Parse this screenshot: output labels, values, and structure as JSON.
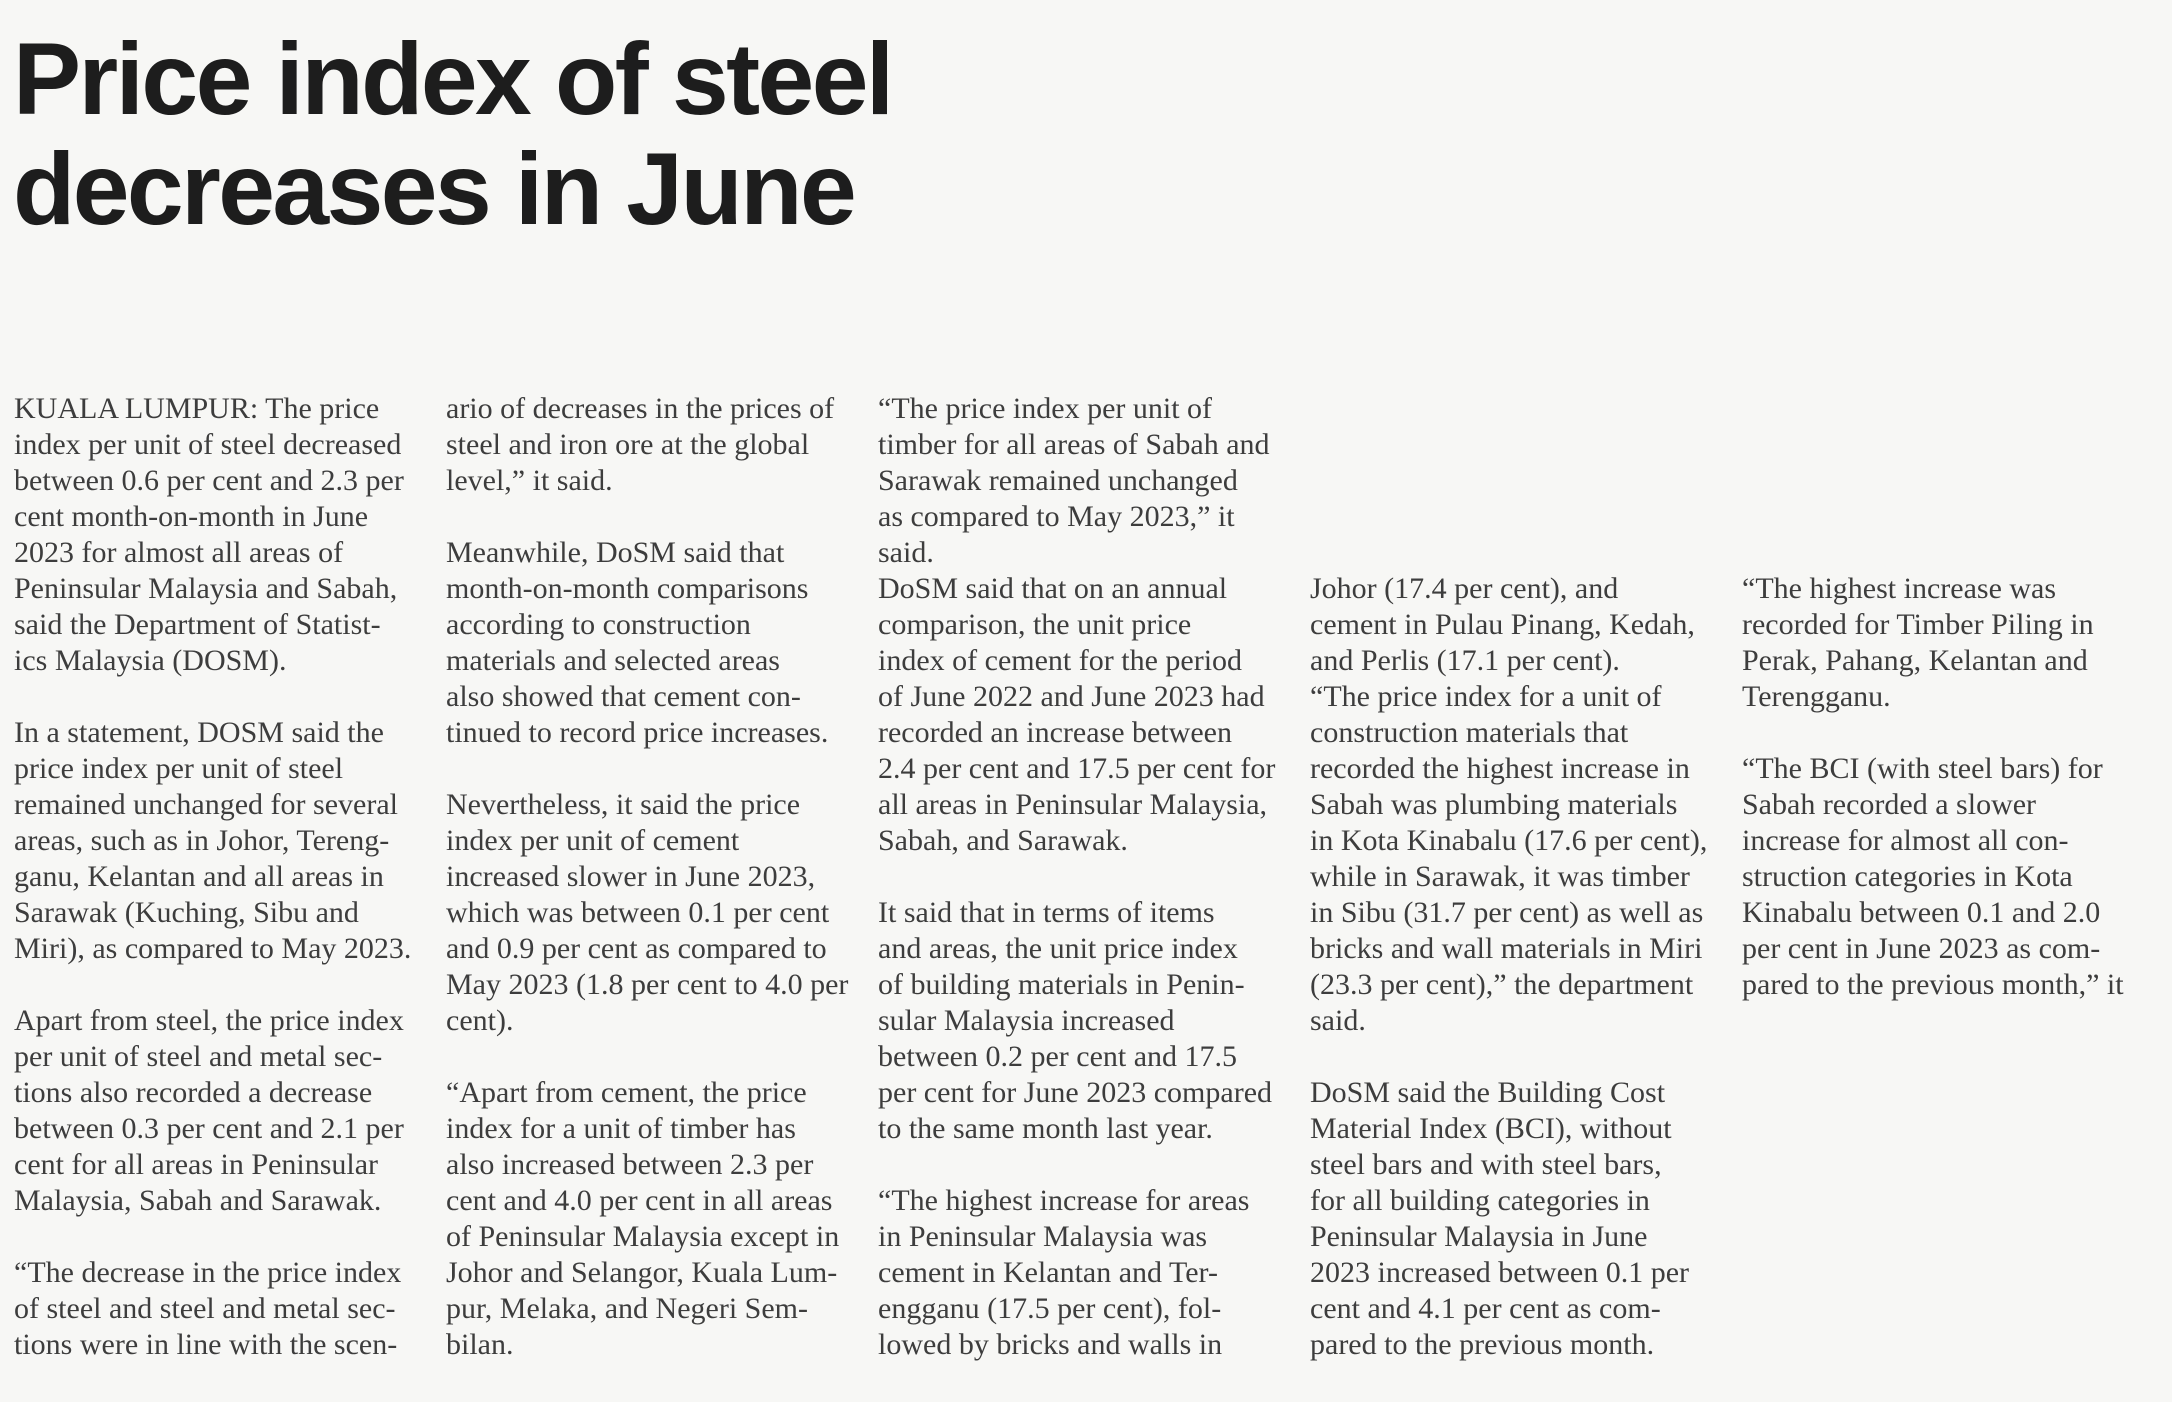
{
  "page": {
    "background_color": "#f7f7f5",
    "headline_color": "#1d1d1d",
    "body_text_color": "#3d3d3d"
  },
  "article": {
    "headline": "Price index of steel\ndecreases in June",
    "columns": [
      {
        "text": "KUALA LUMPUR: The price\nindex per unit of steel decreased\nbetween 0.6 per cent and 2.3 per\ncent month-on-month in June\n2023 for almost all areas of\nPeninsular Malaysia and Sabah,\nsaid the Department of Statist-\nics Malaysia (DOSM).\n\nIn a statement, DOSM said the\nprice index per unit of steel\nremained unchanged for several\nareas, such as in Johor, Tereng-\nganu, Kelantan and all areas in\nSarawak (Kuching, Sibu and\nMiri), as compared to May 2023.\n\nApart from steel, the price index\nper unit of steel and metal sec-\ntions also recorded a decrease\nbetween 0.3 per cent and 2.1 per\ncent for all areas in Peninsular\nMalaysia, Sabah and Sarawak.\n\n“The decrease in the price index\nof steel and steel and metal sec-\ntions were in line with the scen-"
      },
      {
        "text": "ario of decreases in the prices of\nsteel and iron ore at the global\nlevel,” it said.\n\nMeanwhile, DoSM said that\nmonth-on-month comparisons\naccording to construction\nmaterials and selected areas\nalso showed that cement con-\ntinued to record price increases.\n\nNevertheless, it said the price\nindex per unit of cement\nincreased slower in June 2023,\nwhich was between 0.1 per cent\nand 0.9 per cent as compared to\nMay 2023 (1.8 per cent to 4.0 per\ncent).\n\n“Apart from cement, the price\nindex for a unit of timber has\nalso increased between 2.3 per\ncent and 4.0 per cent in all areas\nof Peninsular Malaysia except in\nJohor and Selangor, Kuala Lum-\npur, Melaka, and Negeri Sem-\nbilan."
      },
      {
        "text": "“The price index per unit of\ntimber for all areas of Sabah and\nSarawak remained unchanged\nas compared to May 2023,” it\nsaid.\nDoSM said that on an annual\ncomparison, the unit price\nindex of cement for the period\nof June 2022 and June 2023 had\nrecorded an increase between\n2.4 per cent and 17.5 per cent for\nall areas in Peninsular Malaysia,\nSabah, and Sarawak.\n\nIt said that in terms of items\nand areas, the unit price index\nof building materials in Penin-\nsular Malaysia increased\nbetween 0.2 per cent and 17.5\nper cent for June 2023 compared\nto the same month last year.\n\n“The highest increase for areas\nin Peninsular Malaysia was\ncement in Kelantan and Ter-\nengganu (17.5 per cent), fol-\nlowed by bricks and walls in"
      },
      {
        "text": "Johor (17.4 per cent), and\ncement in Pulau Pinang, Kedah,\nand Perlis (17.1 per cent).\n“The price index for a unit of\nconstruction materials that\nrecorded the highest increase in\nSabah was plumbing materials\nin Kota Kinabalu (17.6 per cent),\nwhile in Sarawak, it was timber\nin Sibu (31.7 per cent) as well as\nbricks and wall materials in Miri\n(23.3 per cent),” the department\nsaid.\n\nDoSM said the Building Cost\nMaterial Index (BCI), without\nsteel bars and with steel bars,\nfor all building categories in\nPeninsular Malaysia in June\n2023 increased between 0.1 per\ncent and 4.1 per cent as com-\npared to the previous month."
      },
      {
        "text": "“The highest increase was\nrecorded for Timber Piling in\nPerak, Pahang, Kelantan and\nTerengganu.\n\n“The BCI (with steel bars) for\nSabah recorded a slower\nincrease for almost all con-\nstruction categories in Kota\nKinabalu between 0.1 and 2.0\nper cent in June 2023 as com-\npared to the previous month,” it"
      }
    ]
  }
}
